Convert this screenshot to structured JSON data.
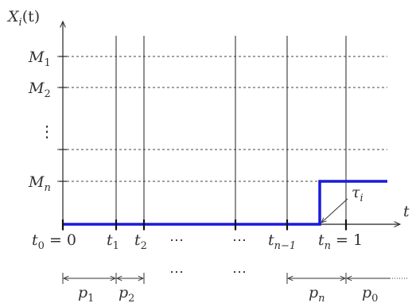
{
  "axes": {
    "y_label": {
      "base": "X",
      "sub": "i",
      "rest": "(t)"
    },
    "x_label": "t"
  },
  "levels": [
    {
      "base": "M",
      "sub": "1"
    },
    {
      "base": "M",
      "sub": "2"
    },
    {
      "base": "M",
      "sub": "n"
    }
  ],
  "vdots": "⋮",
  "times": [
    {
      "base": "t",
      "sub": "0",
      "suffix": " = 0"
    },
    {
      "base": "t",
      "sub": "1",
      "suffix": ""
    },
    {
      "base": "t",
      "sub": "2",
      "suffix": ""
    },
    {
      "base": "t",
      "sub": "n−1",
      "suffix": ""
    },
    {
      "base": "t",
      "sub": "n",
      "suffix": " = 1"
    }
  ],
  "dots": "⋯",
  "tau": {
    "base": "τ",
    "sub": "i"
  },
  "periods": [
    {
      "base": "p",
      "sub": "1"
    },
    {
      "base": "p",
      "sub": "2"
    },
    {
      "base": "p",
      "sub": "n"
    },
    {
      "base": "p",
      "sub": "0"
    }
  ],
  "colors": {
    "path": "#1a1adb",
    "axis": "#222222",
    "grid": "#444444"
  }
}
